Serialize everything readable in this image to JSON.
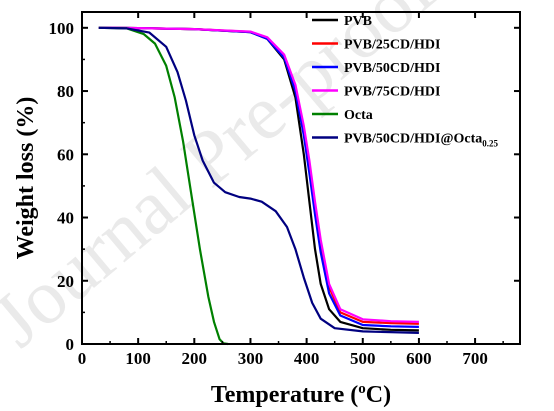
{
  "watermark": "Journal Pre-proof",
  "chart_data": {
    "type": "line",
    "title": "",
    "xlabel": "Temperature",
    "xlabel_unit_prefix": "(",
    "xlabel_unit_sup": "o",
    "xlabel_unit_suffix": "C)",
    "ylabel": "Weight loss (%)",
    "xlim": [
      0,
      780
    ],
    "ylim": [
      0,
      105
    ],
    "x_ticks": [
      0,
      100,
      200,
      300,
      400,
      500,
      600,
      700
    ],
    "y_ticks": [
      0,
      20,
      40,
      60,
      80,
      100
    ],
    "grid": false,
    "legend_position": "top-right",
    "series": [
      {
        "name": "PVB",
        "color": "#000000",
        "points": [
          [
            30,
            100
          ],
          [
            100,
            99.9
          ],
          [
            200,
            99.6
          ],
          [
            300,
            98.6
          ],
          [
            330,
            96.5
          ],
          [
            360,
            90
          ],
          [
            380,
            78
          ],
          [
            395,
            60
          ],
          [
            405,
            45
          ],
          [
            415,
            30
          ],
          [
            425,
            19
          ],
          [
            440,
            11
          ],
          [
            460,
            7
          ],
          [
            500,
            5
          ],
          [
            550,
            4.5
          ],
          [
            600,
            4.3
          ]
        ]
      },
      {
        "name": "PVB/25CD/HDI",
        "color": "#ff0000",
        "points": [
          [
            30,
            100
          ],
          [
            100,
            99.9
          ],
          [
            200,
            99.6
          ],
          [
            300,
            98.7
          ],
          [
            330,
            96.8
          ],
          [
            360,
            91
          ],
          [
            380,
            81
          ],
          [
            395,
            67
          ],
          [
            405,
            56
          ],
          [
            415,
            43
          ],
          [
            425,
            31
          ],
          [
            440,
            18
          ],
          [
            460,
            10
          ],
          [
            500,
            7
          ],
          [
            550,
            6.6
          ],
          [
            600,
            6.4
          ]
        ]
      },
      {
        "name": "PVB/50CD/HDI",
        "color": "#0000ff",
        "points": [
          [
            30,
            100
          ],
          [
            100,
            99.9
          ],
          [
            200,
            99.6
          ],
          [
            300,
            98.6
          ],
          [
            330,
            96.5
          ],
          [
            360,
            90.5
          ],
          [
            380,
            80
          ],
          [
            395,
            66
          ],
          [
            405,
            54
          ],
          [
            415,
            41
          ],
          [
            425,
            29
          ],
          [
            440,
            16
          ],
          [
            460,
            9
          ],
          [
            500,
            6
          ],
          [
            550,
            5.6
          ],
          [
            600,
            5.4
          ]
        ]
      },
      {
        "name": "PVB/75CD/HDI",
        "color": "#ff00ff",
        "points": [
          [
            30,
            100
          ],
          [
            100,
            99.9
          ],
          [
            200,
            99.6
          ],
          [
            300,
            98.8
          ],
          [
            330,
            97
          ],
          [
            360,
            91.5
          ],
          [
            380,
            82
          ],
          [
            395,
            69
          ],
          [
            405,
            58
          ],
          [
            415,
            45
          ],
          [
            425,
            33
          ],
          [
            440,
            19
          ],
          [
            460,
            11
          ],
          [
            500,
            7.8
          ],
          [
            550,
            7.2
          ],
          [
            600,
            7
          ]
        ]
      },
      {
        "name": "Octa",
        "color": "#008000",
        "points": [
          [
            30,
            100
          ],
          [
            80,
            99.8
          ],
          [
            110,
            98
          ],
          [
            130,
            95
          ],
          [
            150,
            88
          ],
          [
            165,
            78
          ],
          [
            180,
            64
          ],
          [
            195,
            47
          ],
          [
            210,
            30
          ],
          [
            225,
            15
          ],
          [
            235,
            7
          ],
          [
            245,
            1.5
          ],
          [
            252,
            0.2
          ],
          [
            260,
            0
          ]
        ]
      },
      {
        "name": "PVB/50CD/HDI@Octa",
        "name_sub": "0.25",
        "color": "#000080",
        "points": [
          [
            30,
            100
          ],
          [
            80,
            99.8
          ],
          [
            120,
            98.5
          ],
          [
            150,
            94
          ],
          [
            170,
            86
          ],
          [
            185,
            77
          ],
          [
            200,
            66
          ],
          [
            215,
            58
          ],
          [
            235,
            51
          ],
          [
            255,
            48
          ],
          [
            280,
            46.5
          ],
          [
            300,
            46
          ],
          [
            320,
            45
          ],
          [
            345,
            42
          ],
          [
            365,
            37
          ],
          [
            380,
            30
          ],
          [
            395,
            21
          ],
          [
            410,
            13
          ],
          [
            425,
            8
          ],
          [
            450,
            5
          ],
          [
            500,
            4
          ],
          [
            600,
            3.5
          ]
        ]
      }
    ]
  }
}
